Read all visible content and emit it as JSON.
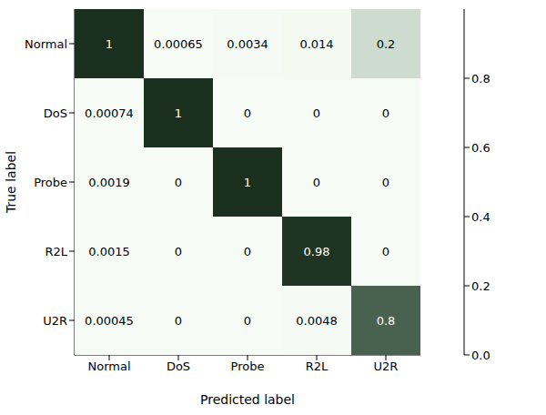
{
  "chart_data": {
    "type": "heatmap",
    "x_categories": [
      "Normal",
      "DoS",
      "Probe",
      "R2L",
      "U2R"
    ],
    "y_categories": [
      "Normal",
      "DoS",
      "Probe",
      "R2L",
      "U2R"
    ],
    "xlabel": "Predicted label",
    "ylabel": "True label",
    "cells": [
      [
        1,
        0.00065,
        0.0034,
        0.014,
        0.2
      ],
      [
        0.00074,
        1,
        0,
        0,
        0
      ],
      [
        0.0019,
        0,
        1,
        0,
        0
      ],
      [
        0.0015,
        0,
        0,
        0.98,
        0
      ],
      [
        0.00045,
        0,
        0,
        0.0048,
        0.8
      ]
    ],
    "data_labels": true,
    "colorbar_range": [
      0,
      1
    ],
    "colorbar_ticks": [
      {
        "value": 0,
        "label": "0.0"
      },
      0.2,
      0.4,
      0.6,
      0.8
    ]
  }
}
